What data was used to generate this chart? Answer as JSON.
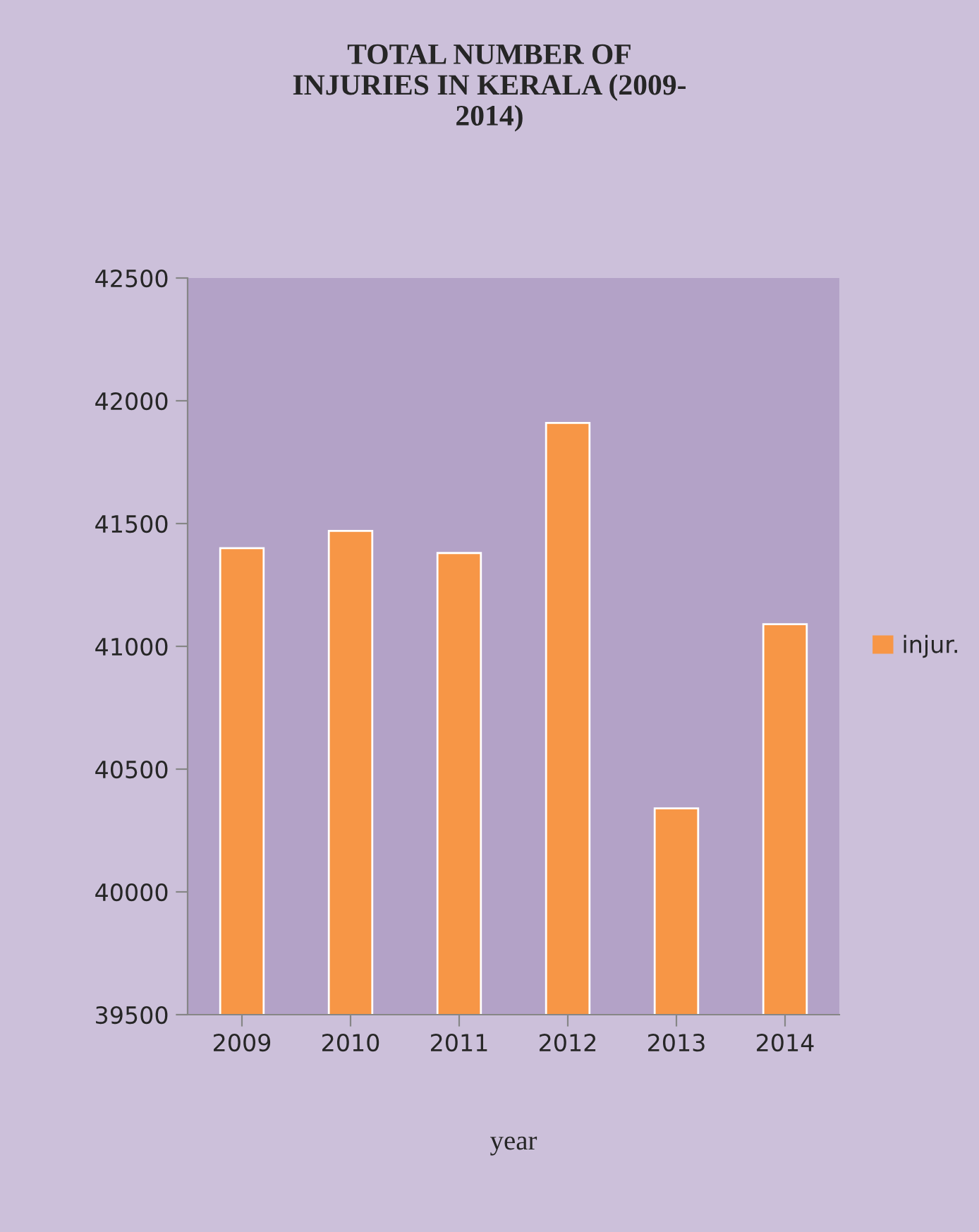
{
  "chart_data": {
    "type": "bar",
    "title": "TOTAL NUMBER OF\nINJURIES IN KERALA (2009-\n2014)",
    "xlabel": "year",
    "categories": [
      "2009",
      "2010",
      "2011",
      "2012",
      "2013",
      "2014"
    ],
    "series": [
      {
        "name": "injur.",
        "color": "#f79646",
        "values": [
          41400,
          41470,
          41380,
          41910,
          40340,
          41090
        ]
      }
    ],
    "ylim": [
      39500,
      42500
    ],
    "yticks": [
      39500,
      40000,
      40500,
      41000,
      41500,
      42000,
      42500
    ],
    "grid": false,
    "legend": "right"
  }
}
